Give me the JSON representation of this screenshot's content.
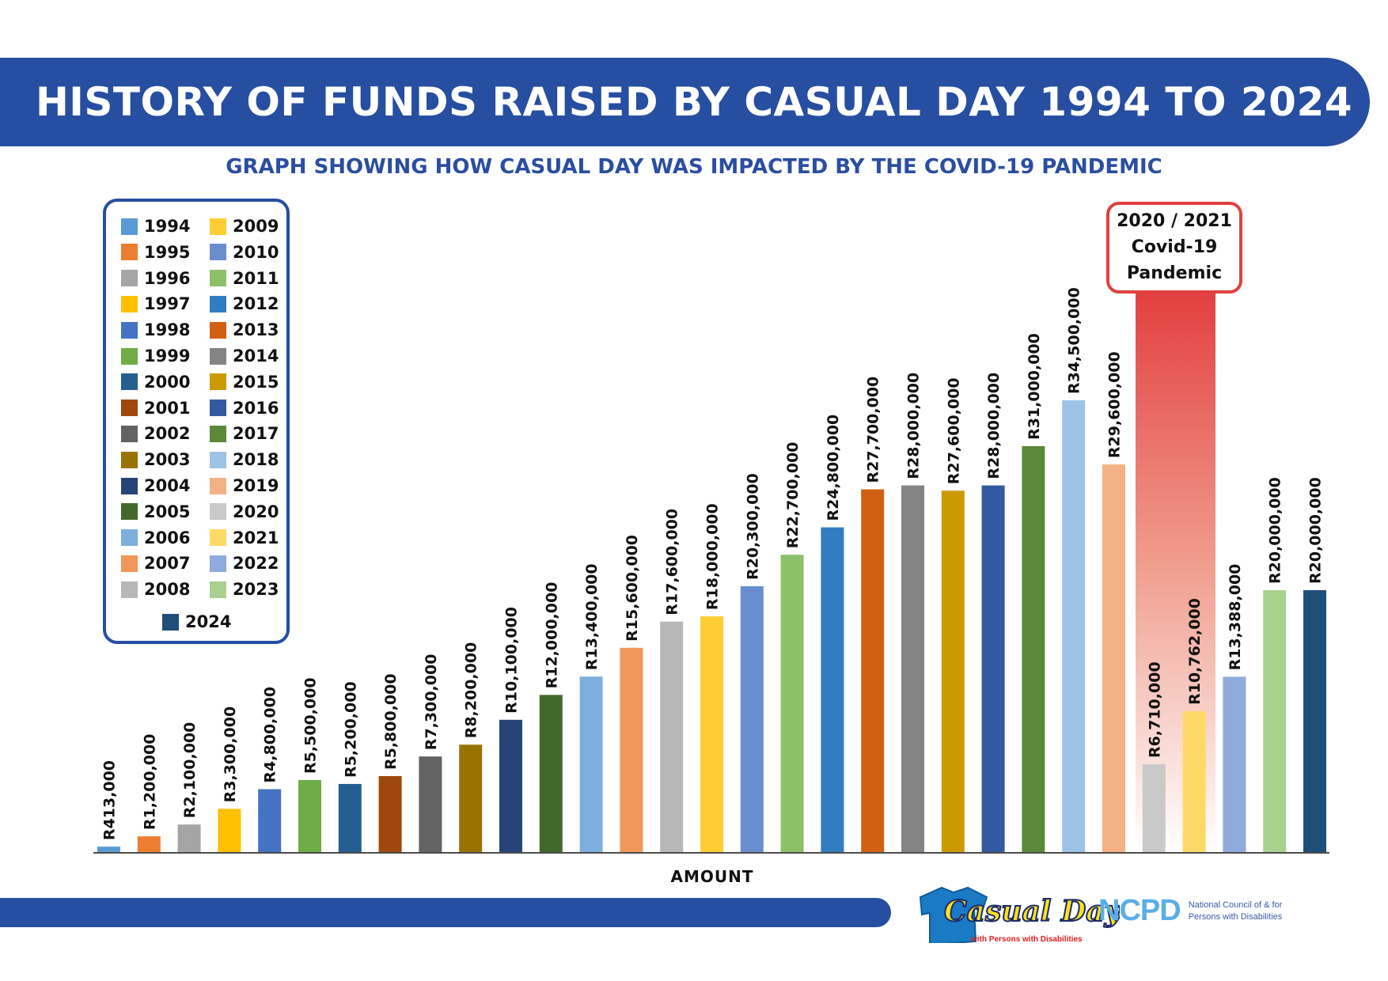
{
  "header": {
    "title": "HISTORY OF FUNDS RAISED BY CASUAL DAY 1994 TO 2024",
    "subtitle": "GRAPH SHOWING HOW CASUAL DAY WAS IMPACTED BY THE COVID-19 PANDEMIC"
  },
  "annotation": {
    "line1": "2020 / 2021",
    "line2": "Covid-19",
    "line3": "Pandemic",
    "color": "#e04040"
  },
  "chart_data": {
    "type": "bar",
    "title": "HISTORY OF FUNDS RAISED BY CASUAL DAY 1994 TO 2024",
    "subtitle": "GRAPH SHOWING HOW CASUAL DAY WAS IMPACTED BY THE COVID-19 PANDEMIC",
    "xlabel": "AMOUNT",
    "ylabel": "",
    "ylim": [
      0,
      34500000
    ],
    "grid": false,
    "legend": "top-left",
    "categories": [
      "1994",
      "1995",
      "1996",
      "1997",
      "1998",
      "1999",
      "2000",
      "2001",
      "2002",
      "2003",
      "2004",
      "2005",
      "2006",
      "2007",
      "2008",
      "2009",
      "2010",
      "2011",
      "2012",
      "2013",
      "2014",
      "2015",
      "2016",
      "2017",
      "2018",
      "2019",
      "2020",
      "2021",
      "2022",
      "2023",
      "2024"
    ],
    "values": [
      413000,
      1200000,
      2100000,
      3300000,
      4800000,
      5500000,
      5200000,
      5800000,
      7300000,
      8200000,
      10100000,
      12000000,
      13400000,
      15600000,
      17600000,
      18000000,
      20300000,
      22700000,
      24800000,
      27700000,
      28000000,
      27600000,
      28000000,
      31000000,
      34500000,
      29600000,
      6710000,
      10762000,
      13388000,
      20000000,
      20000000
    ],
    "data_labels": [
      "R413,000",
      "R1,200,000",
      "R2,100,000",
      "R3,300,000",
      "R4,800,000",
      "R5,500,000",
      "R5,200,000",
      "R5,800,000",
      "R7,300,000",
      "R8,200,000",
      "R10,100,000",
      "R12,000,000",
      "R13,400,000",
      "R15,600,000",
      "R17,600,000",
      "R18,000,000",
      "R20,300,000",
      "R22,700,000",
      "R24,800,000",
      "R27,700,000",
      "R28,000,000",
      "R27,600,000",
      "R28,000,000",
      "R31,000,000",
      "R34,500,000",
      "R29,600,000",
      "R6,710,000",
      "R10,762,000",
      "R13,388,000",
      "R20,000,000",
      "R20,000,000"
    ],
    "colors": [
      "#5b9bd5",
      "#ed7d31",
      "#a5a5a5",
      "#ffc000",
      "#4472c4",
      "#70ad47",
      "#255e91",
      "#9e480e",
      "#636363",
      "#997300",
      "#264478",
      "#43682b",
      "#7cafdd",
      "#f1975a",
      "#b7b7b7",
      "#ffcd33",
      "#698ed0",
      "#8cc168",
      "#327dc2",
      "#d26012",
      "#848484",
      "#cc9a00",
      "#335aa1",
      "#5a8a39",
      "#9dc3e6",
      "#f4b183",
      "#c9c9c9",
      "#ffd966",
      "#8faadc",
      "#a9d18e",
      "#1f4e79"
    ]
  },
  "footer": {
    "casual_day_logo": "Casual Day",
    "casual_day_tagline": "with Persons with Disabilities",
    "ncpd_logo": "NCPD",
    "ncpd_line1": "National Council of & for",
    "ncpd_line2": "Persons with Disabilities"
  }
}
